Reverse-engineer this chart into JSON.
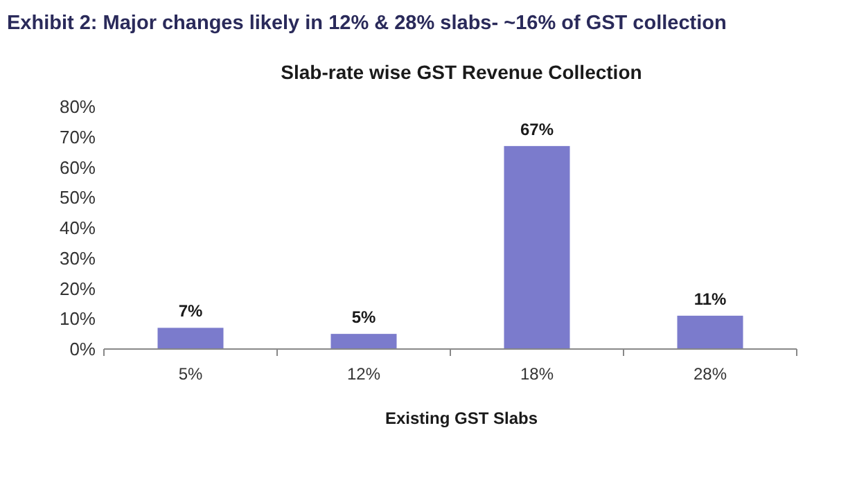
{
  "chart_data": {
    "type": "bar",
    "title": "Exhibit 2: Major changes likely in 12% & 28% slabs- ~16% of GST collection",
    "subtitle": "Slab-rate wise GST Revenue Collection",
    "xlabel": "Existing GST Slabs",
    "categories": [
      "5%",
      "12%",
      "18%",
      "28%"
    ],
    "values": [
      7,
      5,
      67,
      11
    ],
    "color": "#7b7bcc",
    "ylim": [
      0,
      80
    ],
    "yticks": [
      {
        "value": 0,
        "label": "0%"
      },
      {
        "value": 10,
        "label": "10%"
      },
      {
        "value": 20,
        "label": "20%"
      },
      {
        "value": 30,
        "label": "30%"
      },
      {
        "value": 40,
        "label": "40%"
      },
      {
        "value": 50,
        "label": "50%"
      },
      {
        "value": 60,
        "label": "60%"
      },
      {
        "value": 70,
        "label": "70%"
      },
      {
        "value": 80,
        "label": "80%"
      }
    ],
    "value_labels": [
      "7%",
      "5%",
      "67%",
      "11%"
    ],
    "grid": false
  }
}
